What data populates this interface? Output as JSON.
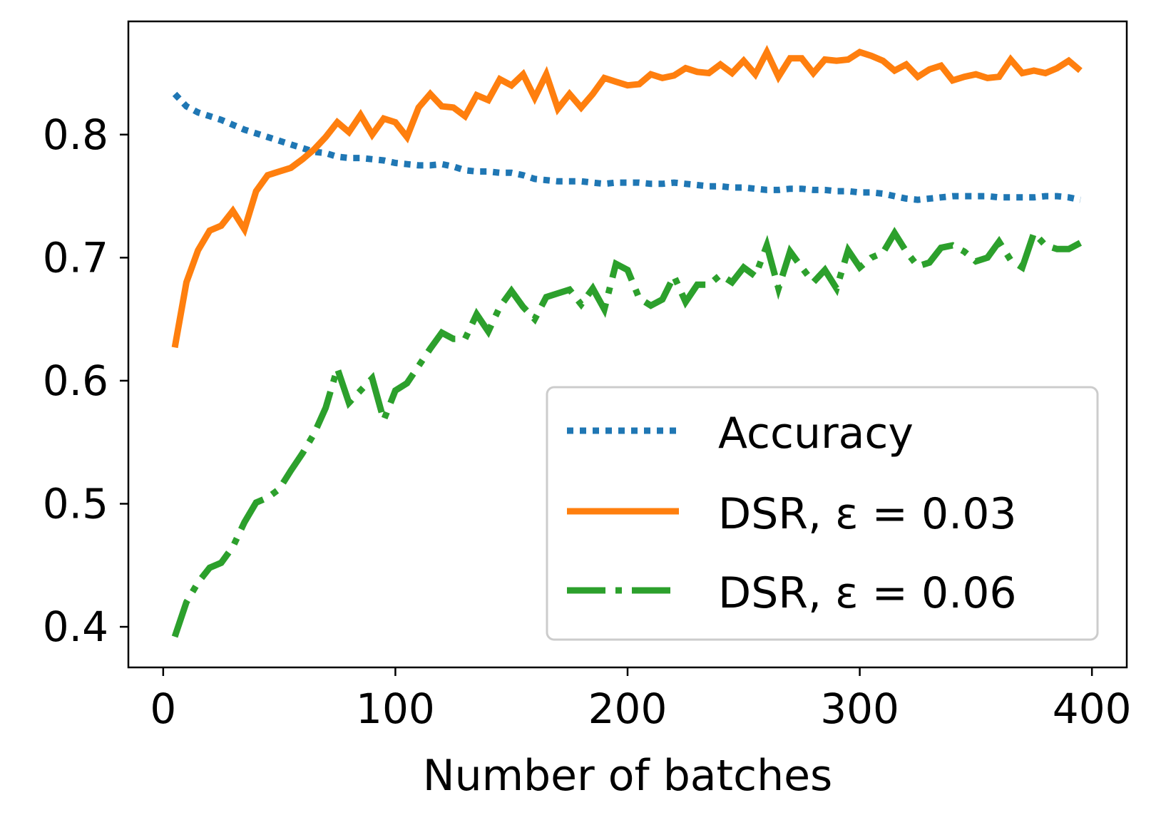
{
  "chart_data": {
    "type": "line",
    "title": "",
    "xlabel": "Number of batches",
    "ylabel": "",
    "xlim": [
      -15,
      415
    ],
    "ylim": [
      0.367,
      0.892
    ],
    "xticks": [
      0,
      100,
      200,
      300,
      400
    ],
    "yticks": [
      0.4,
      0.5,
      0.6,
      0.7,
      0.8
    ],
    "xtick_labels": [
      "0",
      "100",
      "200",
      "300",
      "400"
    ],
    "ytick_labels": [
      "0.4",
      "0.5",
      "0.6",
      "0.7",
      "0.8"
    ],
    "grid": false,
    "legend": {
      "position": "lower-right",
      "entries": [
        "Accuracy",
        "DSR, ε = 0.03",
        "DSR, ε = 0.06"
      ]
    },
    "x": [
      5,
      10,
      15,
      20,
      25,
      30,
      35,
      40,
      45,
      50,
      55,
      60,
      65,
      70,
      75,
      80,
      85,
      90,
      95,
      100,
      105,
      110,
      115,
      120,
      125,
      130,
      135,
      140,
      145,
      150,
      155,
      160,
      165,
      170,
      175,
      180,
      185,
      190,
      195,
      200,
      205,
      210,
      215,
      220,
      225,
      230,
      235,
      240,
      245,
      250,
      255,
      260,
      265,
      270,
      275,
      280,
      285,
      290,
      295,
      300,
      305,
      310,
      315,
      320,
      325,
      330,
      335,
      340,
      345,
      350,
      355,
      360,
      365,
      370,
      375,
      380,
      385,
      390,
      395
    ],
    "series": [
      {
        "name": "Accuracy",
        "color": "#1f77b4",
        "style": "dotted",
        "values": [
          0.833,
          0.823,
          0.818,
          0.815,
          0.812,
          0.808,
          0.804,
          0.801,
          0.798,
          0.795,
          0.792,
          0.789,
          0.786,
          0.785,
          0.782,
          0.781,
          0.781,
          0.78,
          0.779,
          0.777,
          0.776,
          0.775,
          0.775,
          0.776,
          0.774,
          0.771,
          0.77,
          0.77,
          0.769,
          0.769,
          0.767,
          0.764,
          0.763,
          0.762,
          0.762,
          0.762,
          0.761,
          0.76,
          0.761,
          0.761,
          0.761,
          0.76,
          0.76,
          0.761,
          0.76,
          0.759,
          0.758,
          0.758,
          0.757,
          0.757,
          0.756,
          0.755,
          0.755,
          0.756,
          0.756,
          0.755,
          0.755,
          0.754,
          0.754,
          0.753,
          0.753,
          0.752,
          0.75,
          0.748,
          0.747,
          0.748,
          0.749,
          0.75,
          0.75,
          0.75,
          0.75,
          0.749,
          0.749,
          0.749,
          0.749,
          0.75,
          0.75,
          0.749,
          0.747
        ]
      },
      {
        "name": "DSR, ε = 0.03",
        "color": "#ff7f0e",
        "style": "solid",
        "values": [
          0.627,
          0.68,
          0.706,
          0.722,
          0.726,
          0.738,
          0.723,
          0.754,
          0.767,
          0.77,
          0.773,
          0.78,
          0.788,
          0.798,
          0.81,
          0.802,
          0.816,
          0.8,
          0.813,
          0.81,
          0.798,
          0.822,
          0.833,
          0.823,
          0.822,
          0.815,
          0.832,
          0.828,
          0.845,
          0.84,
          0.849,
          0.83,
          0.849,
          0.821,
          0.833,
          0.822,
          0.833,
          0.846,
          0.843,
          0.84,
          0.841,
          0.849,
          0.846,
          0.848,
          0.854,
          0.851,
          0.85,
          0.857,
          0.85,
          0.86,
          0.849,
          0.867,
          0.847,
          0.862,
          0.862,
          0.85,
          0.861,
          0.86,
          0.861,
          0.867,
          0.864,
          0.86,
          0.852,
          0.857,
          0.847,
          0.853,
          0.856,
          0.844,
          0.847,
          0.849,
          0.846,
          0.847,
          0.861,
          0.85,
          0.852,
          0.85,
          0.854,
          0.86,
          0.852
        ]
      },
      {
        "name": "DSR, ε = 0.06",
        "color": "#2ca02c",
        "style": "dashdot",
        "values": [
          0.392,
          0.42,
          0.436,
          0.448,
          0.452,
          0.465,
          0.485,
          0.501,
          0.505,
          0.512,
          0.527,
          0.541,
          0.557,
          0.578,
          0.61,
          0.582,
          0.592,
          0.602,
          0.568,
          0.592,
          0.598,
          0.612,
          0.626,
          0.639,
          0.634,
          0.634,
          0.654,
          0.64,
          0.66,
          0.673,
          0.66,
          0.65,
          0.668,
          0.671,
          0.674,
          0.662,
          0.675,
          0.658,
          0.695,
          0.69,
          0.667,
          0.661,
          0.666,
          0.685,
          0.664,
          0.678,
          0.678,
          0.686,
          0.68,
          0.692,
          0.685,
          0.71,
          0.675,
          0.705,
          0.692,
          0.68,
          0.69,
          0.675,
          0.706,
          0.692,
          0.7,
          0.704,
          0.72,
          0.705,
          0.693,
          0.696,
          0.708,
          0.71,
          0.705,
          0.697,
          0.7,
          0.713,
          0.698,
          0.692,
          0.72,
          0.71,
          0.707,
          0.707,
          0.712
        ]
      }
    ]
  }
}
